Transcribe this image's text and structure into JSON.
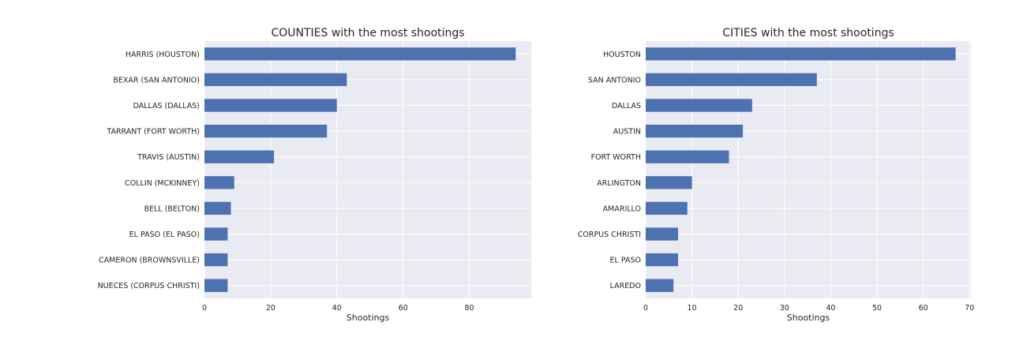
{
  "colors": {
    "bar": "#4c72b0",
    "plot_bg": "#eaeaf2",
    "grid": "#ffffff",
    "text": "#262626"
  },
  "chart_data": [
    {
      "type": "bar",
      "orientation": "horizontal",
      "title": "COUNTIES with the most shootings",
      "xlabel": "Shootings",
      "ylabel": "",
      "categories": [
        "HARRIS (HOUSTON)",
        "BEXAR (SAN ANTONIO)",
        "DALLAS (DALLAS)",
        "TARRANT (FORT WORTH)",
        "TRAVIS (AUSTIN)",
        "COLLIN (MCKINNEY)",
        "BELL (BELTON)",
        "EL PASO (EL PASO)",
        "CAMERON (BROWNSVILLE)",
        "NUECES (CORPUS CHRISTI)"
      ],
      "values": [
        94,
        43,
        40,
        37,
        21,
        9,
        8,
        7,
        7,
        7
      ],
      "xlim": [
        0,
        98.7
      ],
      "xticks": [
        0,
        20,
        40,
        60,
        80
      ],
      "grid": true
    },
    {
      "type": "bar",
      "orientation": "horizontal",
      "title": "CITIES with the most shootings",
      "xlabel": "Shootings",
      "ylabel": "",
      "categories": [
        "HOUSTON",
        "SAN ANTONIO",
        "DALLAS",
        "AUSTIN",
        "FORT WORTH",
        "ARLINGTON",
        "AMARILLO",
        "CORPUS CHRISTI",
        "EL PASO",
        "LAREDO"
      ],
      "values": [
        67,
        37,
        23,
        21,
        18,
        10,
        9,
        7,
        7,
        6
      ],
      "xlim": [
        0,
        70.3
      ],
      "xticks": [
        0,
        10,
        20,
        30,
        40,
        50,
        60,
        70
      ],
      "grid": true
    }
  ]
}
